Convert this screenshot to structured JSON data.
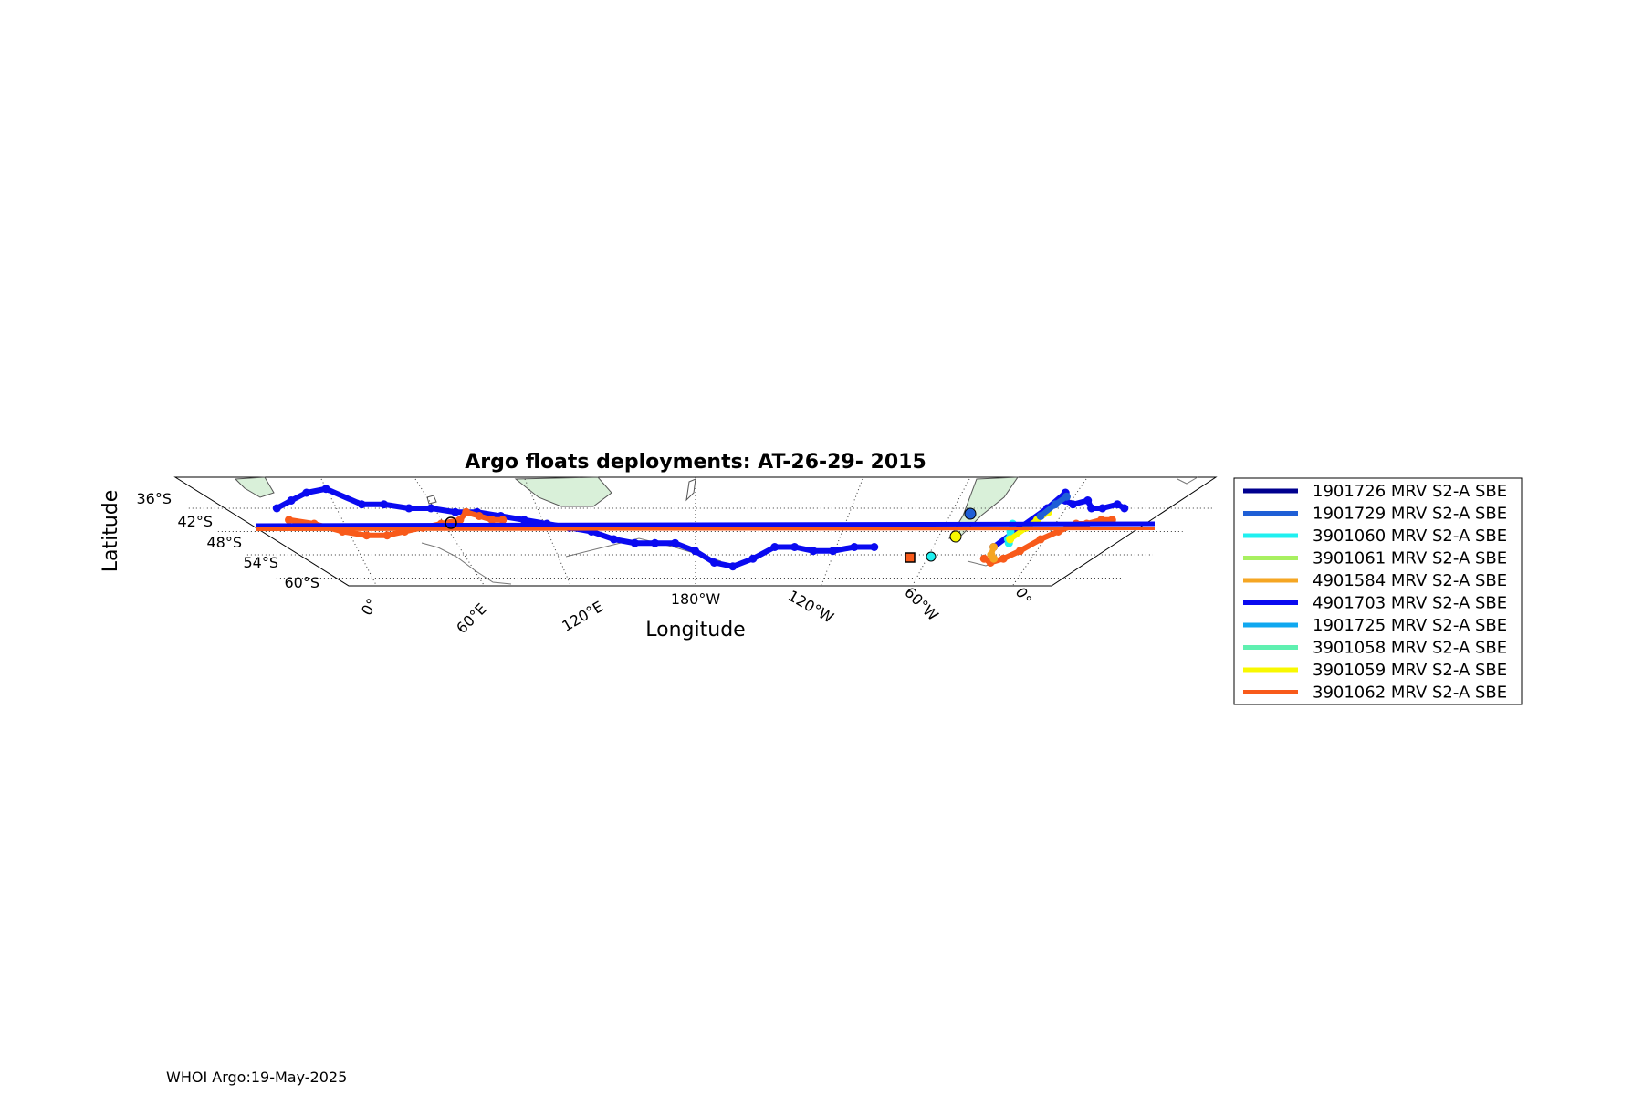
{
  "title": "Argo floats deployments: AT-26-29- 2015",
  "xlabel": "Longitude",
  "ylabel": "Latitude",
  "footer": "WHOI Argo:19-May-2025",
  "lat_ticks": [
    {
      "label": "36°S",
      "lat": -36
    },
    {
      "label": "42°S",
      "lat": -42
    },
    {
      "label": "48°S",
      "lat": -48
    },
    {
      "label": "54°S",
      "lat": -54
    },
    {
      "label": "60°S",
      "lat": -60
    }
  ],
  "lon_ticks": [
    {
      "label": "0°",
      "lon": 0
    },
    {
      "label": "60°E",
      "lon": 60
    },
    {
      "label": "120°E",
      "lon": 120
    },
    {
      "label": "180°W",
      "lon": 180
    },
    {
      "label": "120°W",
      "lon": -120
    },
    {
      "label": "60°W",
      "lon": -60
    },
    {
      "label": "0°",
      "lon": 0
    }
  ],
  "colors": {
    "land": "#d9f0d9",
    "coast": "#555555",
    "grid": "#333333"
  },
  "legend": [
    {
      "label": "1901726 MRV S2-A SBE",
      "color": "#00008f"
    },
    {
      "label": "1901729 MRV S2-A SBE",
      "color": "#1f5fd6"
    },
    {
      "label": "3901060 MRV S2-A SBE",
      "color": "#1ff0f0"
    },
    {
      "label": "3901061 MRV S2-A SBE",
      "color": "#a8f060"
    },
    {
      "label": "4901584 MRV S2-A SBE",
      "color": "#f5a623"
    },
    {
      "label": "4901703 MRV S2-A SBE",
      "color": "#0a0af0"
    },
    {
      "label": "1901725 MRV S2-A SBE",
      "color": "#10a8f0"
    },
    {
      "label": "3901058 MRV S2-A SBE",
      "color": "#5ff0b0"
    },
    {
      "label": "3901059 MRV S2-A SBE",
      "color": "#f8f800"
    },
    {
      "label": "3901062 MRV S2-A SBE",
      "color": "#f85a1a"
    }
  ],
  "chart_data": {
    "type": "map-trajectories",
    "projection": "conic",
    "lat_range": [
      -62,
      -34
    ],
    "lon_range": [
      -40,
      320
    ],
    "grid": true,
    "legend_placement": "right",
    "series": [
      {
        "name": "4901703 MRV S2-A SBE",
        "color": "#0a0af0",
        "track": [
          [
            -40,
            -42
          ],
          [
            -30,
            -40
          ],
          [
            -20,
            -38
          ],
          [
            -10,
            -37
          ],
          [
            0,
            -41
          ],
          [
            10,
            -41
          ],
          [
            20,
            -42
          ],
          [
            30,
            -42
          ],
          [
            40,
            -43
          ],
          [
            50,
            -43
          ],
          [
            60,
            -44
          ],
          [
            70,
            -45
          ],
          [
            80,
            -46
          ],
          [
            90,
            -47
          ],
          [
            100,
            -48
          ],
          [
            110,
            -50
          ],
          [
            120,
            -51
          ],
          [
            130,
            -51
          ],
          [
            140,
            -51
          ],
          [
            150,
            -53
          ],
          [
            160,
            -56
          ],
          [
            170,
            -57
          ],
          [
            180,
            -55
          ],
          [
            190,
            -52
          ],
          [
            200,
            -52
          ],
          [
            210,
            -53
          ],
          [
            220,
            -53
          ],
          [
            230,
            -52
          ],
          [
            240,
            -52
          ]
        ]
      },
      {
        "name": "4901703 MRV S2-A SBE (Atlantic)",
        "color": "#0a0af0",
        "track": [
          [
            300,
            -52
          ],
          [
            305,
            -47
          ],
          [
            310,
            -42
          ],
          [
            312,
            -38
          ],
          [
            315,
            -40
          ],
          [
            320,
            -41
          ],
          [
            325,
            -40
          ],
          [
            330,
            -42
          ],
          [
            335,
            -42
          ],
          [
            340,
            -41
          ],
          [
            345,
            -42
          ]
        ]
      },
      {
        "name": "3901062 MRV S2-A SBE",
        "color": "#f85a1a",
        "track": [
          [
            -40,
            -45
          ],
          [
            -30,
            -46
          ],
          [
            -20,
            -48
          ],
          [
            -10,
            -49
          ],
          [
            0,
            -49
          ],
          [
            10,
            -48
          ],
          [
            20,
            -47
          ],
          [
            30,
            -46
          ],
          [
            40,
            -45
          ],
          [
            45,
            -43
          ],
          [
            50,
            -44
          ],
          [
            55,
            -45
          ],
          [
            60,
            -45
          ]
        ]
      },
      {
        "name": "3901062 MRV S2-A SBE (Atlantic)",
        "color": "#f85a1a",
        "track": [
          [
            300,
            -55
          ],
          [
            305,
            -56
          ],
          [
            310,
            -55
          ],
          [
            315,
            -53
          ],
          [
            320,
            -50
          ],
          [
            325,
            -48
          ],
          [
            330,
            -46
          ],
          [
            335,
            -46
          ],
          [
            340,
            -45
          ],
          [
            345,
            -45
          ]
        ]
      },
      {
        "name": "3901060 MRV S2-A SBE",
        "color": "#1ff0f0",
        "track": [
          [
            300,
            -46
          ],
          [
            302,
            -48
          ],
          [
            304,
            -50
          ],
          [
            306,
            -51
          ]
        ]
      },
      {
        "name": "3901059 MRV S2-A SBE",
        "color": "#f8f800",
        "track": [
          [
            305,
            -50
          ],
          [
            308,
            -47
          ],
          [
            310,
            -45
          ],
          [
            312,
            -43
          ]
        ]
      },
      {
        "name": "1901729 MRV S2-A SBE",
        "color": "#1f5fd6",
        "track": [
          [
            310,
            -44
          ],
          [
            312,
            -41
          ],
          [
            314,
            -39
          ]
        ]
      },
      {
        "name": "4901584 MRV S2-A SBE",
        "color": "#f5a623",
        "track": [
          [
            300,
            -52
          ],
          [
            302,
            -54
          ],
          [
            305,
            -55
          ]
        ]
      }
    ]
  }
}
